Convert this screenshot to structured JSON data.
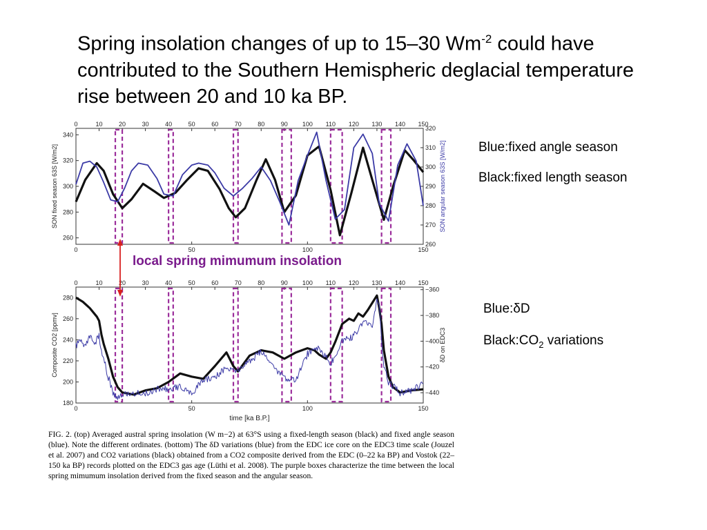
{
  "slide": {
    "title_a": "Spring insolation changes of up to 15–30 Wm",
    "title_sup": "-2",
    "title_b": " could have contributed to the Southern Hemispheric deglacial temperature rise between 20 and 10 ka BP."
  },
  "notes": {
    "top_blue": "Blue:fixed angle season",
    "top_black": "Black:fixed length season",
    "bottom_blue": "Blue:δD",
    "bottom_black_a": "Black:CO",
    "bottom_black_sub": "2",
    "bottom_black_b": " variations"
  },
  "callout": "local spring mimumum insolation",
  "caption": "FIG. 2. (top) Averaged austral spring insolation (W m−2) at 63°S using a fixed-length season (black) and fixed angle season (blue). Note the different ordinates. (bottom) The δD variations (blue) from the EDC ice core on the EDC3 time scale (Jouzel et al. 2007) and CO2 variations (black) obtained from a CO2 composite derived from the EDC (0–22 ka BP) and Vostok (22–150 ka BP) records plotted on the EDC3 gas age (Lüthi et al. 2008). The purple boxes characterize the time between the local spring mimumum insolation derived from the fixed season and the angular season.",
  "colors": {
    "black": "#111111",
    "blue": "#3b3aa6",
    "purple": "#9b2d9b",
    "arrow": "#d9201f",
    "callout": "#7a1b8c"
  },
  "chart_data": [
    {
      "type": "line",
      "xlabel": "",
      "ylabel_left": "SON fixed season 63S [W/m2]",
      "ylabel_right": "SON angular season 63S [W/m2]",
      "xlim": [
        0,
        150
      ],
      "ylim_left": [
        255,
        345
      ],
      "ylim_right": [
        260,
        320
      ],
      "x_ticks_top": [
        0,
        10,
        20,
        30,
        40,
        50,
        60,
        70,
        80,
        90,
        100,
        110,
        120,
        130,
        140,
        150
      ],
      "x_ticks_bottom": [
        0,
        50,
        100,
        150
      ],
      "y_ticks_left": [
        260,
        280,
        300,
        320,
        340
      ],
      "y_ticks_right": [
        260,
        270,
        280,
        290,
        300,
        310,
        320
      ],
      "series": [
        {
          "color": "black",
          "axis": "left",
          "x": [
            0,
            4,
            9,
            12,
            16,
            20,
            24,
            29,
            34,
            38,
            43,
            48,
            53,
            57,
            62,
            66,
            69,
            73,
            78,
            82,
            86,
            90,
            95,
            100,
            105,
            110,
            114,
            119,
            124,
            128,
            133,
            137,
            142,
            146,
            150
          ],
          "y": [
            288,
            305,
            318,
            312,
            294,
            283,
            290,
            302,
            296,
            291,
            295,
            305,
            314,
            312,
            298,
            283,
            276,
            283,
            305,
            321,
            305,
            280,
            293,
            324,
            331,
            297,
            262,
            295,
            330,
            305,
            274,
            300,
            328,
            320,
            311
          ]
        },
        {
          "color": "blue",
          "axis": "right",
          "x": [
            0,
            3,
            6,
            9,
            12,
            15,
            18,
            21,
            24,
            27,
            31,
            35,
            38,
            42,
            46,
            50,
            53,
            57,
            60,
            64,
            68,
            72,
            76,
            80,
            84,
            88,
            92,
            96,
            100,
            104,
            108,
            112,
            116,
            120,
            124,
            128,
            131,
            135,
            139,
            143,
            147,
            150
          ],
          "y": [
            291,
            302,
            303,
            300,
            292,
            283,
            282,
            289,
            298,
            302,
            301,
            294,
            286,
            285,
            296,
            301,
            302,
            301,
            297,
            289,
            285,
            289,
            294,
            300,
            293,
            282,
            270,
            293,
            306,
            318,
            293,
            273,
            278,
            310,
            317,
            307,
            281,
            272,
            301,
            312,
            303,
            280
          ]
        },
        {
          "name": "",
          "color": "purple",
          "role": "boxes (start, end) [ka]",
          "x": [
            17,
            20,
            40,
            42,
            68,
            70,
            89,
            93,
            110,
            115,
            132,
            136
          ]
        }
      ]
    },
    {
      "type": "line",
      "xlabel": "time [ka B.P.]",
      "ylabel_left": "Composite CO2 [ppmv]",
      "ylabel_right": "δD on EDC3",
      "xlim": [
        0,
        150
      ],
      "ylim_left": [
        180,
        290
      ],
      "ylim_right": [
        -448,
        -358
      ],
      "x_ticks_top": [
        0,
        10,
        20,
        30,
        40,
        50,
        60,
        70,
        80,
        90,
        100,
        110,
        120,
        130,
        140,
        150
      ],
      "x_ticks_bottom": [
        0,
        50,
        100,
        150
      ],
      "y_ticks_left": [
        180,
        200,
        220,
        240,
        260,
        280
      ],
      "y_ticks_right": [
        -440,
        -420,
        -400,
        -380,
        -360
      ],
      "series": [
        {
          "color": "black",
          "axis": "left",
          "x": [
            0,
            3,
            6,
            9,
            10,
            11,
            12,
            14,
            16,
            18,
            20,
            25,
            30,
            35,
            40,
            45,
            50,
            55,
            60,
            65,
            68,
            70,
            75,
            80,
            85,
            90,
            95,
            100,
            103,
            105,
            108,
            110,
            112,
            115,
            118,
            120,
            122,
            124,
            126,
            128,
            130,
            131,
            132,
            133,
            135,
            137,
            140,
            145,
            150
          ],
          "y": [
            280,
            276,
            270,
            262,
            258,
            245,
            236,
            222,
            205,
            195,
            190,
            188,
            192,
            194,
            200,
            208,
            205,
            203,
            215,
            228,
            215,
            210,
            225,
            230,
            228,
            222,
            228,
            232,
            230,
            226,
            222,
            228,
            238,
            255,
            260,
            258,
            265,
            262,
            268,
            275,
            282,
            270,
            255,
            230,
            205,
            195,
            190,
            192,
            193
          ]
        },
        {
          "color": "blue",
          "axis": "right",
          "x": [
            0,
            2,
            4,
            6,
            8,
            10,
            11,
            12,
            14,
            16,
            18,
            20,
            25,
            30,
            35,
            40,
            45,
            50,
            55,
            60,
            65,
            70,
            75,
            80,
            85,
            90,
            95,
            100,
            105,
            110,
            112,
            115,
            118,
            120,
            122,
            125,
            128,
            130,
            131,
            132,
            133,
            135,
            140,
            145,
            150
          ],
          "y": [
            -404,
            -398,
            -404,
            -397,
            -402,
            -396,
            -408,
            -414,
            -428,
            -440,
            -443,
            -441,
            -440,
            -441,
            -437,
            -437,
            -435,
            -440,
            -430,
            -428,
            -420,
            -424,
            -416,
            -408,
            -419,
            -429,
            -430,
            -410,
            -405,
            -418,
            -410,
            -400,
            -398,
            -396,
            -390,
            -385,
            -388,
            -366,
            -372,
            -400,
            -420,
            -432,
            -440,
            -438,
            -433
          ]
        }
      ]
    }
  ]
}
